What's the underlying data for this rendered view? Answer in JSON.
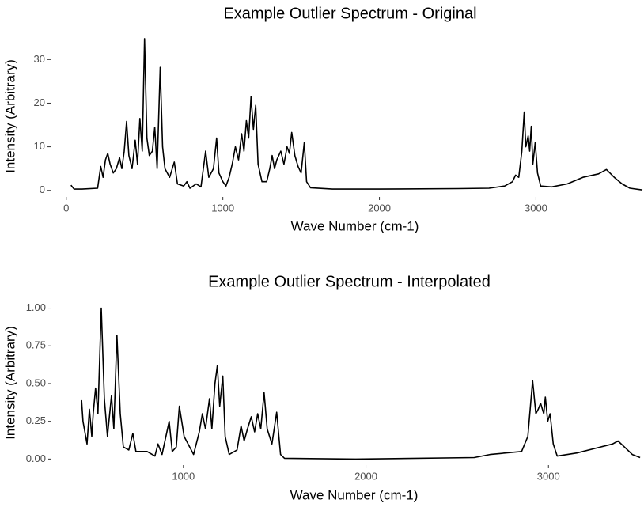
{
  "chart_data": [
    {
      "type": "line",
      "title": "Example Outlier Spectrum - Original",
      "x_label": "Wave Number (cm-1)",
      "y_label": "Intensity (Arbitrary)",
      "xlim": [
        -100,
        3685
      ],
      "ylim": [
        -1.5,
        35.5
      ],
      "xticks": [
        0,
        1000,
        2000,
        3000
      ],
      "yticks": [
        0,
        10,
        20,
        30
      ],
      "color": "#000000",
      "x": [
        30,
        50,
        100,
        200,
        220,
        235,
        250,
        265,
        280,
        300,
        320,
        340,
        355,
        370,
        385,
        400,
        420,
        440,
        455,
        470,
        485,
        500,
        515,
        530,
        550,
        565,
        580,
        600,
        615,
        630,
        660,
        690,
        710,
        750,
        770,
        790,
        830,
        860,
        890,
        910,
        940,
        960,
        975,
        1000,
        1020,
        1040,
        1060,
        1080,
        1100,
        1120,
        1135,
        1150,
        1165,
        1180,
        1195,
        1210,
        1225,
        1250,
        1280,
        1300,
        1315,
        1330,
        1345,
        1370,
        1390,
        1410,
        1425,
        1440,
        1460,
        1480,
        1500,
        1520,
        1535,
        1560,
        1700,
        2000,
        2500,
        2700,
        2800,
        2850,
        2870,
        2890,
        2910,
        2925,
        2935,
        2950,
        2960,
        2970,
        2980,
        2995,
        3010,
        3030,
        3100,
        3200,
        3300,
        3400,
        3450,
        3500,
        3550,
        3600,
        3680
      ],
      "values": [
        1.2,
        0.3,
        0.3,
        0.5,
        5.5,
        3,
        7,
        8.5,
        6,
        4,
        5,
        7.5,
        5,
        9,
        15.8,
        8,
        5,
        11.5,
        6,
        16.5,
        9,
        34.8,
        12,
        8,
        9,
        14.5,
        5,
        28.2,
        10,
        5,
        3,
        6.5,
        1.5,
        1,
        2,
        0.5,
        1.5,
        0.8,
        9,
        3,
        5,
        12,
        4,
        2,
        1,
        3,
        6,
        10,
        7,
        13,
        9,
        16,
        12,
        21.5,
        14,
        19.5,
        6,
        2,
        2,
        5,
        8,
        5,
        7,
        9,
        6,
        10,
        8.5,
        13.3,
        8,
        5.5,
        4,
        11,
        2,
        0.6,
        0.3,
        0.3,
        0.4,
        0.5,
        1,
        2,
        3.5,
        3,
        9,
        18,
        10,
        12.5,
        9,
        14.7,
        6,
        11,
        4,
        1,
        0.8,
        1.5,
        3,
        3.8,
        4.8,
        3,
        1.5,
        0.5,
        0.1
      ]
    },
    {
      "type": "line",
      "title": "Example Outlier Spectrum - Interpolated",
      "x_label": "Wave Number (cm-1)",
      "y_label": "Intensity (Arbitrary)",
      "xlim": [
        277,
        3506
      ],
      "ylim": [
        -0.04,
        1.05
      ],
      "xticks": [
        1000,
        2000,
        3000
      ],
      "yticks": [
        {
          "value": 0,
          "label": "0.00"
        },
        {
          "value": 0.25,
          "label": "0.25"
        },
        {
          "value": 0.5,
          "label": "0.50"
        },
        {
          "value": 0.75,
          "label": "0.75"
        },
        {
          "value": 1,
          "label": "1.00"
        }
      ],
      "color": "#000000",
      "x": [
        442,
        450,
        472,
        485,
        498,
        506,
        519,
        532,
        550,
        567,
        584,
        606,
        619,
        636,
        654,
        671,
        701,
        723,
        740,
        801,
        844,
        861,
        883,
        922,
        939,
        961,
        978,
        1004,
        1056,
        1087,
        1104,
        1121,
        1143,
        1156,
        1173,
        1186,
        1199,
        1216,
        1229,
        1251,
        1294,
        1316,
        1333,
        1351,
        1372,
        1390,
        1407,
        1424,
        1442,
        1459,
        1485,
        1511,
        1532,
        1554,
        1944,
        2593,
        2680,
        2853,
        2887,
        2913,
        2931,
        2944,
        2957,
        2974,
        2983,
        2996,
        3009,
        3026,
        3048,
        3156,
        3286,
        3351,
        3381,
        3416,
        3459,
        3502
      ],
      "values": [
        0.39,
        0.25,
        0.1,
        0.33,
        0.15,
        0.3,
        0.47,
        0.3,
        1.0,
        0.4,
        0.15,
        0.42,
        0.2,
        0.82,
        0.3,
        0.08,
        0.06,
        0.17,
        0.05,
        0.05,
        0.02,
        0.1,
        0.03,
        0.25,
        0.05,
        0.08,
        0.35,
        0.15,
        0.03,
        0.18,
        0.3,
        0.2,
        0.4,
        0.2,
        0.5,
        0.62,
        0.35,
        0.55,
        0.15,
        0.03,
        0.06,
        0.22,
        0.12,
        0.2,
        0.28,
        0.18,
        0.3,
        0.2,
        0.44,
        0.2,
        0.1,
        0.31,
        0.03,
        0.005,
        0,
        0.01,
        0.03,
        0.05,
        0.15,
        0.52,
        0.3,
        0.33,
        0.37,
        0.3,
        0.41,
        0.25,
        0.3,
        0.1,
        0.02,
        0.04,
        0.08,
        0.1,
        0.12,
        0.08,
        0.03,
        0.01
      ]
    }
  ]
}
